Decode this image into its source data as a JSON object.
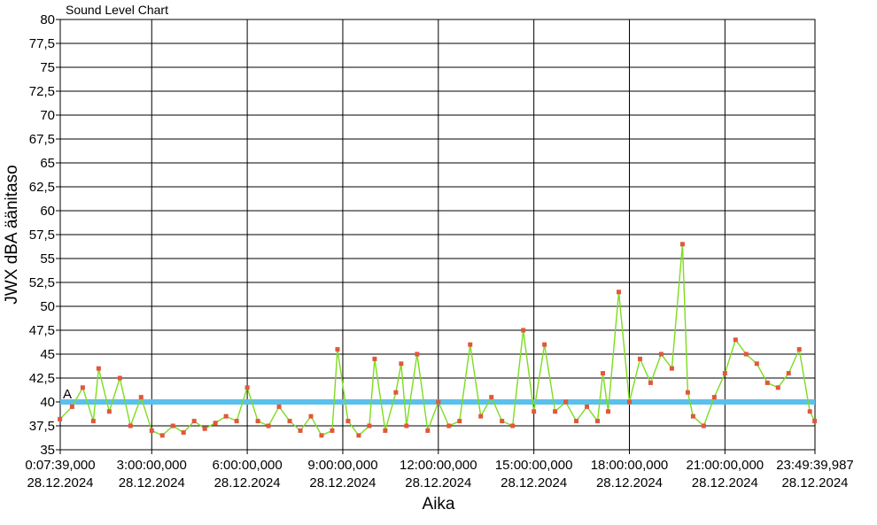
{
  "chart_data": {
    "type": "line",
    "title": "Sound Level Chart",
    "xlabel": "Aika",
    "ylabel": "JWX dBA äänitaso",
    "ylim": [
      35,
      80
    ],
    "xlim": [
      "28.12.2024 0:07:39",
      "28.12.2024 23:49:40"
    ],
    "grid": true,
    "y_ticks": [
      "35",
      "37,5",
      "40",
      "42,5",
      "45",
      "47,5",
      "50",
      "52,5",
      "55",
      "57,5",
      "60",
      "62,5",
      "65",
      "67,5",
      "70",
      "72,5",
      "75",
      "77,5",
      "80"
    ],
    "x_ticks": [
      {
        "time": "0:07:39,000",
        "date": "28.12.2024"
      },
      {
        "time": "3:00:00,000",
        "date": "28.12.2024"
      },
      {
        "time": "6:00:00,000",
        "date": "28.12.2024"
      },
      {
        "time": "9:00:00,000",
        "date": "28.12.2024"
      },
      {
        "time": "12:00:00,000",
        "date": "28.12.2024"
      },
      {
        "time": "15:00:00,000",
        "date": "28.12.2024"
      },
      {
        "time": "18:00:00,000",
        "date": "28.12.2024"
      },
      {
        "time": "21:00:00,000",
        "date": "28.12.2024"
      },
      {
        "time": "23:49:39,987",
        "date": "28.12.2024"
      }
    ],
    "threshold": {
      "label": "A",
      "value": 40,
      "color": "#5bc0eb"
    },
    "series": [
      {
        "color": "#7ddc1f",
        "marker_color": "#e2573a",
        "points": [
          [
            "0:07",
            38.2
          ],
          [
            "0:30",
            39.5
          ],
          [
            "0:50",
            41.5
          ],
          [
            "1:10",
            38.0
          ],
          [
            "1:20",
            43.5
          ],
          [
            "1:40",
            39.0
          ],
          [
            "2:00",
            42.5
          ],
          [
            "2:20",
            37.5
          ],
          [
            "2:40",
            40.5
          ],
          [
            "3:00",
            37.0
          ],
          [
            "3:20",
            36.5
          ],
          [
            "3:40",
            37.5
          ],
          [
            "4:00",
            36.8
          ],
          [
            "4:20",
            38.0
          ],
          [
            "4:40",
            37.2
          ],
          [
            "5:00",
            37.8
          ],
          [
            "5:20",
            38.5
          ],
          [
            "5:40",
            38.0
          ],
          [
            "6:00",
            41.5
          ],
          [
            "6:20",
            38.0
          ],
          [
            "6:40",
            37.5
          ],
          [
            "7:00",
            39.5
          ],
          [
            "7:20",
            38.0
          ],
          [
            "7:40",
            37.0
          ],
          [
            "8:00",
            38.5
          ],
          [
            "8:20",
            36.5
          ],
          [
            "8:40",
            37.0
          ],
          [
            "8:50",
            45.5
          ],
          [
            "9:10",
            38.0
          ],
          [
            "9:30",
            36.5
          ],
          [
            "9:50",
            37.5
          ],
          [
            "10:00",
            44.5
          ],
          [
            "10:20",
            37.0
          ],
          [
            "10:40",
            41.0
          ],
          [
            "10:50",
            44.0
          ],
          [
            "11:00",
            37.5
          ],
          [
            "11:20",
            45.0
          ],
          [
            "11:40",
            37.0
          ],
          [
            "12:00",
            40.0
          ],
          [
            "12:20",
            37.5
          ],
          [
            "12:40",
            38.0
          ],
          [
            "13:00",
            46.0
          ],
          [
            "13:20",
            38.5
          ],
          [
            "13:40",
            40.5
          ],
          [
            "14:00",
            38.0
          ],
          [
            "14:20",
            37.5
          ],
          [
            "14:40",
            47.5
          ],
          [
            "15:00",
            39.0
          ],
          [
            "15:20",
            46.0
          ],
          [
            "15:40",
            39.0
          ],
          [
            "16:00",
            40.0
          ],
          [
            "16:20",
            38.0
          ],
          [
            "16:40",
            39.5
          ],
          [
            "17:00",
            38.0
          ],
          [
            "17:10",
            43.0
          ],
          [
            "17:20",
            39.0
          ],
          [
            "17:40",
            51.5
          ],
          [
            "18:00",
            40.0
          ],
          [
            "18:20",
            44.5
          ],
          [
            "18:40",
            42.0
          ],
          [
            "19:00",
            45.0
          ],
          [
            "19:20",
            43.5
          ],
          [
            "19:40",
            56.5
          ],
          [
            "19:50",
            41.0
          ],
          [
            "20:00",
            38.5
          ],
          [
            "20:20",
            37.5
          ],
          [
            "20:40",
            40.5
          ],
          [
            "21:00",
            43.0
          ],
          [
            "21:20",
            46.5
          ],
          [
            "21:40",
            45.0
          ],
          [
            "22:00",
            44.0
          ],
          [
            "22:20",
            42.0
          ],
          [
            "22:40",
            41.5
          ],
          [
            "23:00",
            43.0
          ],
          [
            "23:20",
            45.5
          ],
          [
            "23:40",
            39.0
          ],
          [
            "23:49",
            38.0
          ]
        ]
      }
    ]
  }
}
